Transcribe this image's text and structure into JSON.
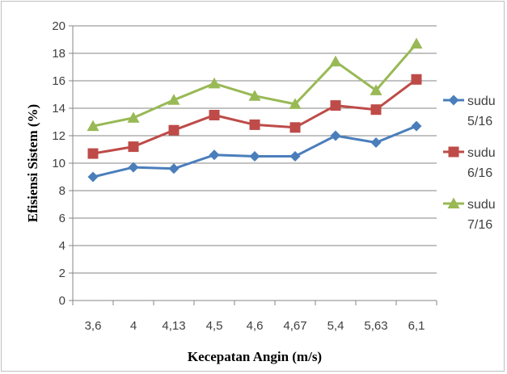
{
  "chart_data": {
    "type": "line",
    "xlabel": "Kecepatan Angin (m/s)",
    "ylabel": "Efisiensi Sistem (%)",
    "categories": [
      "3,6",
      "4",
      "4,13",
      "4,5",
      "4,6",
      "4,67",
      "5,4",
      "5,63",
      "6,1"
    ],
    "ylim": [
      0,
      20
    ],
    "yticks": [
      "0",
      "2",
      "4",
      "6",
      "8",
      "10",
      "12",
      "14",
      "16",
      "18",
      "20"
    ],
    "grid": true,
    "legend_position": "right",
    "series": [
      {
        "name": [
          "sudu",
          "5/16"
        ],
        "marker": "diamond",
        "color": "#4a7ebb",
        "values": [
          9.0,
          9.7,
          9.6,
          10.6,
          10.5,
          10.5,
          12.0,
          11.5,
          12.7
        ]
      },
      {
        "name": [
          "sudu",
          "6/16"
        ],
        "marker": "square",
        "color": "#be4b48",
        "values": [
          10.7,
          11.2,
          12.4,
          13.5,
          12.8,
          12.6,
          14.2,
          13.9,
          16.1
        ]
      },
      {
        "name": [
          "sudu",
          "7/16"
        ],
        "marker": "triangle",
        "color": "#98b954",
        "values": [
          12.7,
          13.3,
          14.6,
          15.8,
          14.9,
          14.3,
          17.4,
          15.3,
          18.7
        ]
      }
    ]
  }
}
